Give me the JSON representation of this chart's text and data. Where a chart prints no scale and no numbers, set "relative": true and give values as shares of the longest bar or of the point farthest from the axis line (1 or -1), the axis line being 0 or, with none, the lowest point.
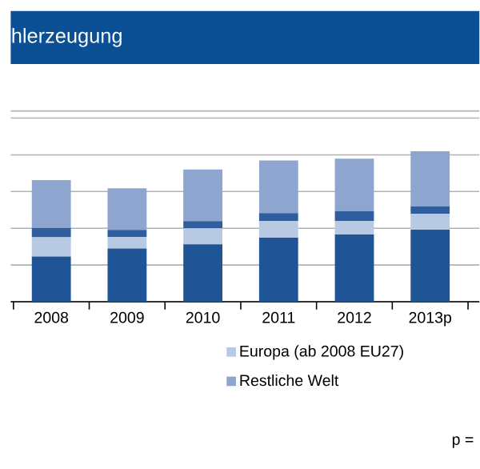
{
  "chart_data": {
    "type": "bar",
    "title": "hlerzeugung",
    "stacked": true,
    "relative": true,
    "grid": "y",
    "legend": "bottom",
    "categories": [
      "2008",
      "2009",
      "2010",
      "2011",
      "2012",
      "2013p"
    ],
    "series": [
      {
        "color": "#1f5596",
        "values": [
          0.3,
          0.353,
          0.381,
          0.426,
          0.446,
          0.478
        ]
      },
      {
        "name": "Europa (ab 2008 EU27)",
        "color": "#b8c9e3",
        "values": [
          0.128,
          0.076,
          0.107,
          0.111,
          0.09,
          0.107
        ]
      },
      {
        "color": "#2e5e9e",
        "values": [
          0.062,
          0.048,
          0.048,
          0.052,
          0.066,
          0.048
        ]
      },
      {
        "name": "Restliche Welt",
        "color": "#8ea5cf",
        "values": [
          0.318,
          0.277,
          0.343,
          0.349,
          0.349,
          0.367
        ]
      }
    ],
    "annotations": [
      "p ="
    ]
  }
}
